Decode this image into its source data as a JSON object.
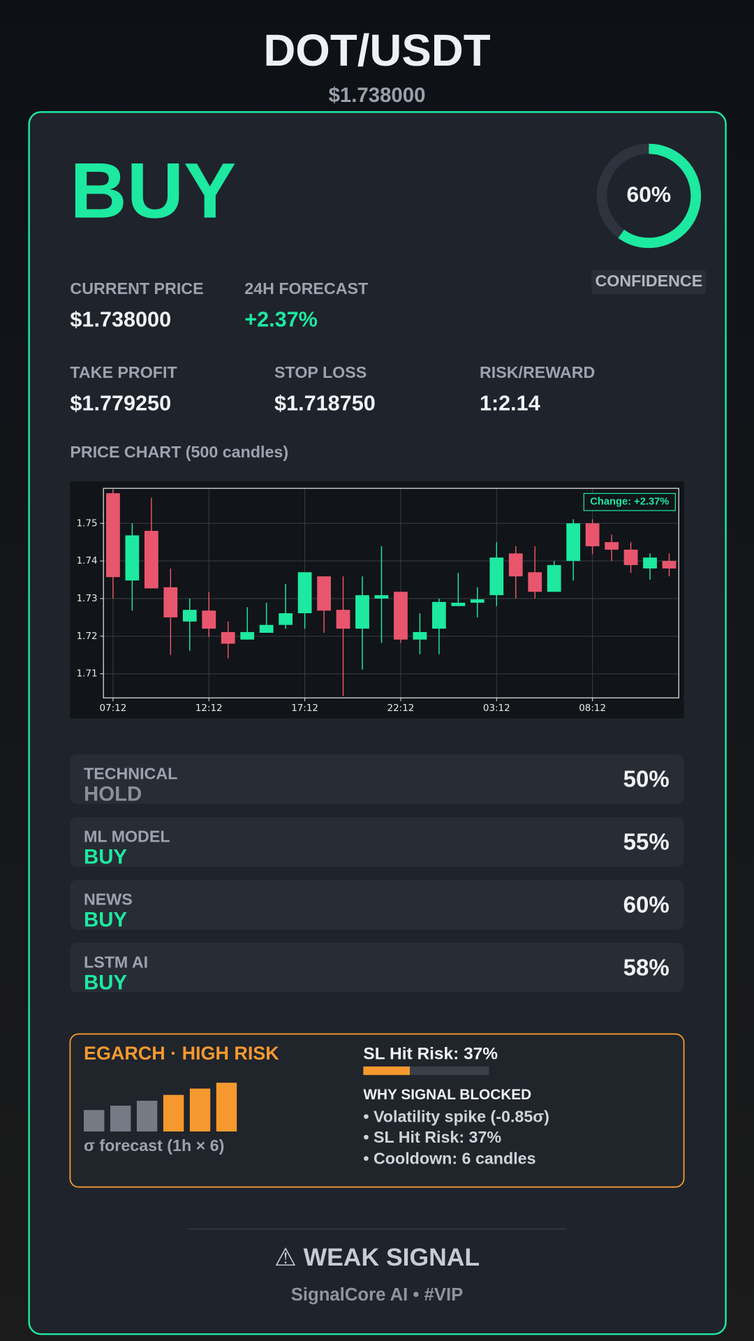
{
  "header": {
    "title": "DOT/USDT",
    "price": "$1.738000"
  },
  "signal": {
    "action": "BUY",
    "confidence": {
      "value": 60,
      "label": "60%"
    },
    "confidence_label": "CONFIDENCE"
  },
  "metrics": [
    {
      "label": "CURRENT PRICE",
      "value": "$1.738000"
    },
    {
      "label": "24H FORECAST",
      "value": "+2.37%"
    },
    {
      "label": "TAKE PROFIT",
      "value": "$1.779250"
    },
    {
      "label": "STOP LOSS",
      "value": "$1.718750"
    },
    {
      "label": "RISK/REWARD",
      "value": "1:2.14"
    }
  ],
  "chart_data": {
    "type": "candlestick",
    "title": "PRICE CHART (500 candles)",
    "annotation": "Change: +2.37%",
    "categories": [
      "07:12",
      null,
      null,
      null,
      null,
      "12:12",
      null,
      null,
      null,
      null,
      "17:12",
      null,
      null,
      null,
      null,
      "22:12",
      null,
      null,
      null,
      null,
      "03:12",
      null,
      null,
      null,
      null,
      "08:12",
      null,
      null,
      null,
      null
    ],
    "open": [
      1.758,
      1.7348,
      1.748,
      1.733,
      1.7239,
      1.7268,
      1.7211,
      1.7191,
      1.7209,
      1.723,
      1.7261,
      1.7359,
      1.727,
      1.722,
      1.73,
      1.7318,
      1.7191,
      1.722,
      1.728,
      1.7289,
      1.7309,
      1.742,
      1.737,
      1.7318,
      1.74,
      1.75,
      1.745,
      1.743,
      1.738,
      1.74
    ],
    "high": [
      1.759,
      1.75,
      1.7568,
      1.738,
      1.73,
      1.7318,
      1.7239,
      1.7277,
      1.7289,
      1.7339,
      1.737,
      1.7359,
      1.7359,
      1.7359,
      1.7439,
      1.7318,
      1.7261,
      1.73,
      1.7368,
      1.733,
      1.745,
      1.7439,
      1.7439,
      1.74,
      1.7511,
      1.7511,
      1.747,
      1.745,
      1.742,
      1.742
    ],
    "low": [
      1.73,
      1.7268,
      1.7327,
      1.715,
      1.7161,
      1.7198,
      1.7141,
      1.7191,
      1.7209,
      1.722,
      1.722,
      1.7209,
      1.7041,
      1.7111,
      1.7182,
      1.7182,
      1.7152,
      1.7152,
      1.728,
      1.725,
      1.728,
      1.73,
      1.73,
      1.7318,
      1.7348,
      1.7418,
      1.74,
      1.7368,
      1.735,
      1.7359
    ],
    "close": [
      1.7357,
      1.7468,
      1.7327,
      1.725,
      1.727,
      1.722,
      1.718,
      1.7211,
      1.723,
      1.7261,
      1.737,
      1.7268,
      1.722,
      1.7309,
      1.7309,
      1.7191,
      1.7211,
      1.7291,
      1.7289,
      1.7298,
      1.7409,
      1.7359,
      1.7318,
      1.7389,
      1.75,
      1.7439,
      1.743,
      1.7389,
      1.7409,
      1.738
    ],
    "up_color": "#1de9a0",
    "down_color": "#e8566e",
    "ylim": [
      1.7036,
      1.7593
    ],
    "yticks": [
      1.71,
      1.72,
      1.73,
      1.74,
      1.75
    ],
    "grid": true
  },
  "rows": [
    {
      "label": "TECHNICAL",
      "signal": "HOLD",
      "score": "50%",
      "color": "#8a8f98"
    },
    {
      "label": "ML MODEL",
      "signal": "BUY",
      "score": "55%",
      "color": "#1de9a0"
    },
    {
      "label": "NEWS",
      "signal": "BUY",
      "score": "60%",
      "color": "#1de9a0"
    },
    {
      "label": "LSTM AI",
      "signal": "BUY",
      "score": "58%",
      "color": "#1de9a0"
    }
  ],
  "egarch": {
    "title": "EGARCH · HIGH RISK",
    "caption": "σ forecast (1h × 6)",
    "sigma": {
      "values": [
        0.44,
        0.53,
        0.63,
        0.75,
        0.88,
        1.0
      ],
      "colors": [
        "#767a84",
        "#767a84",
        "#767a84",
        "#f5992e",
        "#f5992e",
        "#f5992e"
      ]
    },
    "sl_risk": {
      "label": "SL Hit Risk: 37%",
      "value": 37
    },
    "blocked_title": "WHY SIGNAL BLOCKED",
    "reasons": [
      "• Volatility spike (-0.85σ)",
      "• SL Hit Risk: 37%",
      "• Cooldown: 6 candles"
    ]
  },
  "footer": {
    "status": "⚠ WEAK SIGNAL",
    "brand": "SignalCore AI • #VIP"
  }
}
